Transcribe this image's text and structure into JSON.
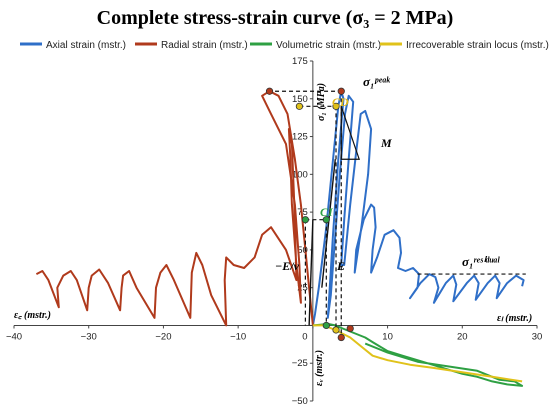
{
  "chart_data": {
    "type": "line",
    "title": "Complete stress-strain curve (σ₃ = 2 MPa)",
    "xlim": [
      -40,
      30
    ],
    "ylim": [
      -50,
      175
    ],
    "x_ticks": [
      -40,
      -30,
      -20,
      -10,
      0,
      10,
      20,
      30
    ],
    "y_ticks": [
      -50,
      -25,
      0,
      25,
      50,
      75,
      100,
      125,
      150,
      175
    ],
    "xlabel_right": "εₗ (mstr.)",
    "xlabel_left": "ε꜀ (mstr.)",
    "ylabel_upper": "σ₁ (MPa)",
    "ylabel_lower": "εᵥ (mstr.)",
    "legend_position": "top",
    "colors": {
      "axial": "#2f6fc8",
      "radial": "#b03a1c",
      "volumetric": "#2ea043",
      "irrecoverable": "#e0c21a"
    },
    "series": [
      {
        "name": "Axial strain (mstr.)",
        "points": [
          [
            0,
            0
          ],
          [
            0.3,
            8
          ],
          [
            0.8,
            25
          ],
          [
            1.3,
            45
          ],
          [
            1.8,
            65
          ],
          [
            2.2,
            85
          ],
          [
            2.6,
            105
          ],
          [
            3.0,
            125
          ],
          [
            3.4,
            145
          ],
          [
            3.8,
            155
          ],
          [
            4.1,
            150
          ],
          [
            3.4,
            110
          ],
          [
            2.7,
            60
          ],
          [
            2.2,
            20
          ],
          [
            2.0,
            5
          ],
          [
            2.4,
            20
          ],
          [
            3.0,
            60
          ],
          [
            3.6,
            100
          ],
          [
            4.3,
            140
          ],
          [
            4.8,
            152
          ],
          [
            5.4,
            148
          ],
          [
            4.8,
            110
          ],
          [
            4.2,
            70
          ],
          [
            3.8,
            40
          ],
          [
            4.2,
            40
          ],
          [
            5.0,
            80
          ],
          [
            5.8,
            115
          ],
          [
            6.4,
            140
          ],
          [
            7.0,
            142
          ],
          [
            7.8,
            130
          ],
          [
            7.4,
            100
          ],
          [
            6.5,
            65
          ],
          [
            5.6,
            35
          ],
          [
            5.8,
            50
          ],
          [
            6.8,
            70
          ],
          [
            7.8,
            80
          ],
          [
            8.2,
            78
          ],
          [
            8.4,
            65
          ],
          [
            8.0,
            50
          ],
          [
            7.8,
            35
          ],
          [
            8.6,
            45
          ],
          [
            9.6,
            60
          ],
          [
            10.8,
            63
          ],
          [
            11.6,
            58
          ],
          [
            11.8,
            48
          ],
          [
            11.4,
            38
          ],
          [
            12.4,
            36
          ],
          [
            13.4,
            38
          ],
          [
            14.2,
            34
          ],
          [
            14.0,
            25
          ],
          [
            13.0,
            18
          ],
          [
            14.4,
            28
          ],
          [
            15.6,
            34
          ],
          [
            16.4,
            32
          ],
          [
            16.8,
            25
          ],
          [
            16.2,
            15
          ],
          [
            17.8,
            28
          ],
          [
            18.8,
            33
          ],
          [
            19.2,
            27
          ],
          [
            18.8,
            16
          ],
          [
            20.6,
            28
          ],
          [
            21.6,
            33
          ],
          [
            22.2,
            28
          ],
          [
            21.8,
            17
          ],
          [
            23.4,
            28
          ],
          [
            24.4,
            33
          ],
          [
            25.0,
            28
          ],
          [
            24.6,
            18
          ],
          [
            26.0,
            28
          ],
          [
            27.2,
            33
          ],
          [
            28.2,
            30
          ],
          [
            28.0,
            26
          ]
        ]
      },
      {
        "name": "Radial strain (mstr.)",
        "points": [
          [
            0,
            0
          ],
          [
            -0.5,
            25
          ],
          [
            -1.0,
            50
          ],
          [
            -1.6,
            80
          ],
          [
            -2.4,
            110
          ],
          [
            -3.4,
            140
          ],
          [
            -4.6,
            152
          ],
          [
            -5.8,
            155
          ],
          [
            -6.8,
            152
          ],
          [
            -5.6,
            140
          ],
          [
            -3.6,
            120
          ],
          [
            -2.4,
            80
          ],
          [
            -1.8,
            40
          ],
          [
            -1.6,
            15
          ],
          [
            -2.2,
            40
          ],
          [
            -2.8,
            80
          ],
          [
            -3.0,
            110
          ],
          [
            -3.2,
            130
          ],
          [
            -2.8,
            120
          ],
          [
            -2.4,
            70
          ],
          [
            -2.2,
            30
          ],
          [
            -3.6,
            50
          ],
          [
            -5.6,
            65
          ],
          [
            -6.8,
            60
          ],
          [
            -7.8,
            45
          ],
          [
            -9.2,
            38
          ],
          [
            -10.6,
            40
          ],
          [
            -11.6,
            45
          ],
          [
            -11.8,
            30
          ],
          [
            -11.6,
            0
          ],
          [
            -13.6,
            20
          ],
          [
            -14.8,
            40
          ],
          [
            -15.6,
            48
          ],
          [
            -16.2,
            35
          ],
          [
            -16.4,
            5
          ],
          [
            -18.6,
            30
          ],
          [
            -19.6,
            40
          ],
          [
            -20.4,
            35
          ],
          [
            -21.0,
            25
          ],
          [
            -21.2,
            5
          ],
          [
            -23.6,
            25
          ],
          [
            -24.6,
            36
          ],
          [
            -25.4,
            33
          ],
          [
            -25.6,
            25
          ],
          [
            -25.8,
            10
          ],
          [
            -27.4,
            28
          ],
          [
            -28.6,
            37
          ],
          [
            -29.6,
            33
          ],
          [
            -30.0,
            25
          ],
          [
            -30.2,
            10
          ],
          [
            -31.6,
            30
          ],
          [
            -32.4,
            36
          ],
          [
            -33.4,
            33
          ],
          [
            -34.2,
            25
          ],
          [
            -34.0,
            12
          ],
          [
            -35.4,
            30
          ],
          [
            -36.2,
            36
          ],
          [
            -37.0,
            34
          ]
        ]
      },
      {
        "name": "Volumetric strain (mstr.)",
        "points": [
          [
            0,
            0
          ],
          [
            1.0,
            0.5
          ],
          [
            2.0,
            1
          ],
          [
            3.0,
            0
          ],
          [
            4.0,
            -2
          ],
          [
            5.0,
            -4
          ],
          [
            6.0,
            -6
          ],
          [
            7.0,
            -8
          ],
          [
            8.0,
            -11
          ],
          [
            9.0,
            -14
          ],
          [
            10.0,
            -17
          ],
          [
            12.0,
            -20
          ],
          [
            14.0,
            -23
          ],
          [
            16.0,
            -26
          ],
          [
            18.0,
            -29
          ],
          [
            20.0,
            -32
          ],
          [
            22.0,
            -34
          ],
          [
            24.0,
            -37
          ],
          [
            26.0,
            -39
          ],
          [
            28.0,
            -40
          ],
          [
            27.0,
            -37
          ],
          [
            25.0,
            -36
          ],
          [
            22.0,
            -30
          ],
          [
            18.0,
            -27
          ],
          [
            14.0,
            -24
          ],
          [
            10.0,
            -18
          ],
          [
            7.0,
            -12
          ]
        ]
      },
      {
        "name": "Irrecoverable strain locus (mstr.)",
        "points": [
          [
            0,
            0
          ],
          [
            1.5,
            0
          ],
          [
            3.0,
            -3
          ],
          [
            5.0,
            -8
          ],
          [
            6.5,
            -14
          ],
          [
            8.0,
            -20
          ],
          [
            10.0,
            -23
          ],
          [
            13.0,
            -26
          ],
          [
            16.0,
            -28
          ],
          [
            20.0,
            -31
          ],
          [
            24.0,
            -34
          ],
          [
            28.0,
            -37
          ]
        ]
      }
    ],
    "annotations": {
      "peak": "σ₁ᵖᵉᵃᵏ",
      "residual": "σ₁ʳᵉˢⁱᵈᵘᵃˡ",
      "cd": "CD",
      "ci": "CI",
      "e": "E",
      "m": "M",
      "nu": "−E/ν",
      "peak_stress": 155,
      "cd_stress": 145,
      "ci_stress": 70,
      "residual_stress": 34
    }
  }
}
